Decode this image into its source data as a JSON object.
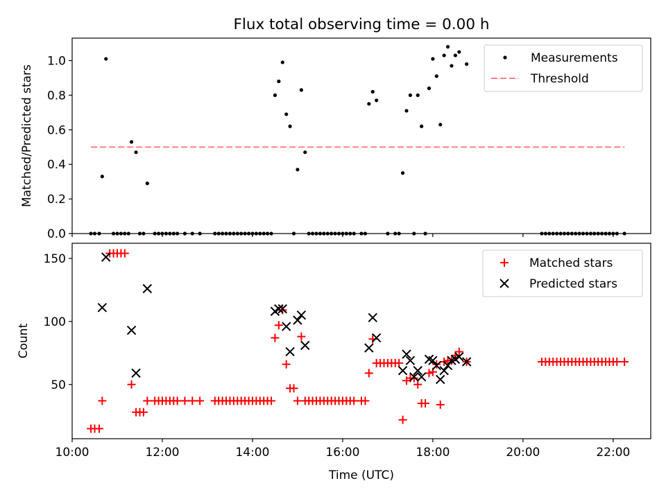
{
  "colors": {
    "measurements": "#000000",
    "threshold": "#ff8080",
    "matched": "#ff0000",
    "predicted": "#000000",
    "axes": "#000000",
    "legend_border": "#cccccc"
  },
  "chart_data": [
    {
      "type": "scatter",
      "title": "Flux total observing time = 0.00 h",
      "xlabel": "",
      "ylabel": "Matched/Predicted stars",
      "xlim": [
        "10:00",
        "22:50"
      ],
      "ylim": [
        0,
        1.13
      ],
      "yticks": [
        0.0,
        0.2,
        0.4,
        0.6,
        0.8,
        1.0
      ],
      "yticklabels": [
        "0.0",
        "0.2",
        "0.4",
        "0.6",
        "0.8",
        "1.0"
      ],
      "grid": false,
      "legend": "top-right",
      "series": [
        {
          "name": "Measurements",
          "marker": "dot",
          "points": [
            [
              "10:25",
              0
            ],
            [
              "10:30",
              0
            ],
            [
              "10:36",
              0
            ],
            [
              "10:40",
              0.33
            ],
            [
              "10:45",
              1.01
            ],
            [
              "10:55",
              0
            ],
            [
              "11:00",
              0
            ],
            [
              "11:05",
              0
            ],
            [
              "11:10",
              0
            ],
            [
              "11:15",
              0
            ],
            [
              "11:19",
              0.53
            ],
            [
              "11:25",
              0.47
            ],
            [
              "11:30",
              0
            ],
            [
              "11:35",
              0
            ],
            [
              "11:40",
              0.29
            ],
            [
              "11:50",
              0
            ],
            [
              "11:55",
              0
            ],
            [
              "12:00",
              0
            ],
            [
              "12:05",
              0
            ],
            [
              "12:10",
              0
            ],
            [
              "12:15",
              0
            ],
            [
              "12:20",
              0
            ],
            [
              "12:30",
              0
            ],
            [
              "12:40",
              0
            ],
            [
              "12:50",
              0
            ],
            [
              "13:10",
              0
            ],
            [
              "13:15",
              0
            ],
            [
              "13:20",
              0
            ],
            [
              "13:25",
              0
            ],
            [
              "13:30",
              0
            ],
            [
              "13:35",
              0
            ],
            [
              "13:40",
              0
            ],
            [
              "13:45",
              0
            ],
            [
              "13:50",
              0
            ],
            [
              "13:55",
              0
            ],
            [
              "14:00",
              0
            ],
            [
              "14:05",
              0
            ],
            [
              "14:10",
              0
            ],
            [
              "14:15",
              0
            ],
            [
              "14:20",
              0
            ],
            [
              "14:25",
              0
            ],
            [
              "14:30",
              0.8
            ],
            [
              "14:35",
              0.88
            ],
            [
              "14:40",
              0.99
            ],
            [
              "14:45",
              0.69
            ],
            [
              "14:50",
              0.62
            ],
            [
              "14:55",
              0
            ],
            [
              "15:00",
              0.37
            ],
            [
              "15:05",
              0.83
            ],
            [
              "15:10",
              0.47
            ],
            [
              "15:15",
              0
            ],
            [
              "15:20",
              0
            ],
            [
              "15:25",
              0
            ],
            [
              "15:30",
              0
            ],
            [
              "15:35",
              0
            ],
            [
              "15:40",
              0
            ],
            [
              "15:45",
              0
            ],
            [
              "15:50",
              0
            ],
            [
              "15:55",
              0
            ],
            [
              "16:00",
              0
            ],
            [
              "16:05",
              0
            ],
            [
              "16:10",
              0
            ],
            [
              "16:15",
              0
            ],
            [
              "16:25",
              0
            ],
            [
              "16:30",
              0
            ],
            [
              "16:35",
              0.75
            ],
            [
              "16:40",
              0.82
            ],
            [
              "16:45",
              0.77
            ],
            [
              "17:00",
              0
            ],
            [
              "17:10",
              0
            ],
            [
              "17:15",
              0
            ],
            [
              "17:20",
              0.35
            ],
            [
              "17:25",
              0.71
            ],
            [
              "17:30",
              0.8
            ],
            [
              "17:35",
              0
            ],
            [
              "17:40",
              0.8
            ],
            [
              "17:45",
              0.62
            ],
            [
              "17:50",
              0
            ],
            [
              "17:55",
              0.84
            ],
            [
              "18:00",
              1.01
            ],
            [
              "18:05",
              0.91
            ],
            [
              "18:10",
              0.63
            ],
            [
              "18:15",
              1.03
            ],
            [
              "18:20",
              1.08
            ],
            [
              "18:25",
              0.97
            ],
            [
              "18:30",
              1.03
            ],
            [
              "18:35",
              1.05
            ],
            [
              "18:45",
              0.98
            ],
            [
              "20:25",
              0
            ],
            [
              "20:30",
              0
            ],
            [
              "20:35",
              0
            ],
            [
              "20:40",
              0
            ],
            [
              "20:45",
              0
            ],
            [
              "20:50",
              0
            ],
            [
              "20:55",
              0
            ],
            [
              "21:00",
              0
            ],
            [
              "21:05",
              0
            ],
            [
              "21:10",
              0
            ],
            [
              "21:15",
              0
            ],
            [
              "21:20",
              0
            ],
            [
              "21:25",
              0
            ],
            [
              "21:30",
              0
            ],
            [
              "21:35",
              0
            ],
            [
              "21:40",
              0
            ],
            [
              "21:45",
              0
            ],
            [
              "21:50",
              0
            ],
            [
              "21:55",
              0
            ],
            [
              "22:00",
              0
            ],
            [
              "22:05",
              0
            ],
            [
              "22:15",
              0
            ]
          ]
        },
        {
          "name": "Threshold",
          "style": "dashed",
          "points": [
            [
              "10:25",
              0.5
            ],
            [
              "22:15",
              0.5
            ]
          ]
        }
      ]
    },
    {
      "type": "scatter",
      "title": "",
      "xlabel": "Time (UTC)",
      "ylabel": "Count",
      "xlim": [
        "10:00",
        "22:50"
      ],
      "ylim": [
        7,
        162
      ],
      "yticks": [
        50,
        100,
        150
      ],
      "yticklabels": [
        "50",
        "100",
        "150"
      ],
      "xticks": [
        "10:00",
        "12:00",
        "14:00",
        "16:00",
        "18:00",
        "20:00",
        "22:00"
      ],
      "xticklabels": [
        "10:00",
        "12:00",
        "14:00",
        "16:00",
        "18:00",
        "20:00",
        "22:00"
      ],
      "grid": false,
      "legend": "top-right",
      "series": [
        {
          "name": "Matched stars",
          "marker": "plus",
          "points": [
            [
              "10:25",
              15
            ],
            [
              "10:30",
              15
            ],
            [
              "10:36",
              15
            ],
            [
              "10:40",
              37
            ],
            [
              "10:50",
              154
            ],
            [
              "10:55",
              154
            ],
            [
              "11:00",
              154
            ],
            [
              "11:05",
              154
            ],
            [
              "11:10",
              154
            ],
            [
              "11:19",
              50
            ],
            [
              "11:25",
              28
            ],
            [
              "11:30",
              28
            ],
            [
              "11:35",
              28
            ],
            [
              "11:40",
              37
            ],
            [
              "11:50",
              37
            ],
            [
              "11:55",
              37
            ],
            [
              "12:00",
              37
            ],
            [
              "12:05",
              37
            ],
            [
              "12:10",
              37
            ],
            [
              "12:15",
              37
            ],
            [
              "12:20",
              37
            ],
            [
              "12:30",
              37
            ],
            [
              "12:40",
              37
            ],
            [
              "12:50",
              37
            ],
            [
              "13:10",
              37
            ],
            [
              "13:15",
              37
            ],
            [
              "13:20",
              37
            ],
            [
              "13:25",
              37
            ],
            [
              "13:30",
              37
            ],
            [
              "13:35",
              37
            ],
            [
              "13:40",
              37
            ],
            [
              "13:45",
              37
            ],
            [
              "13:50",
              37
            ],
            [
              "13:55",
              37
            ],
            [
              "14:00",
              37
            ],
            [
              "14:05",
              37
            ],
            [
              "14:10",
              37
            ],
            [
              "14:15",
              37
            ],
            [
              "14:20",
              37
            ],
            [
              "14:25",
              37
            ],
            [
              "14:30",
              87
            ],
            [
              "14:35",
              97
            ],
            [
              "14:40",
              109
            ],
            [
              "14:45",
              66
            ],
            [
              "14:50",
              47
            ],
            [
              "14:55",
              47
            ],
            [
              "15:00",
              37
            ],
            [
              "15:05",
              88
            ],
            [
              "15:10",
              37
            ],
            [
              "15:15",
              37
            ],
            [
              "15:20",
              37
            ],
            [
              "15:25",
              37
            ],
            [
              "15:30",
              37
            ],
            [
              "15:35",
              37
            ],
            [
              "15:40",
              37
            ],
            [
              "15:45",
              37
            ],
            [
              "15:50",
              37
            ],
            [
              "15:55",
              37
            ],
            [
              "16:00",
              37
            ],
            [
              "16:05",
              37
            ],
            [
              "16:10",
              37
            ],
            [
              "16:15",
              37
            ],
            [
              "16:25",
              37
            ],
            [
              "16:30",
              37
            ],
            [
              "16:35",
              59
            ],
            [
              "16:40",
              86
            ],
            [
              "16:45",
              67
            ],
            [
              "16:50",
              67
            ],
            [
              "16:55",
              67
            ],
            [
              "17:00",
              67
            ],
            [
              "17:05",
              67
            ],
            [
              "17:10",
              67
            ],
            [
              "17:15",
              67
            ],
            [
              "17:20",
              22
            ],
            [
              "17:25",
              53
            ],
            [
              "17:30",
              55
            ],
            [
              "17:35",
              55
            ],
            [
              "17:40",
              50
            ],
            [
              "17:45",
              35
            ],
            [
              "17:50",
              35
            ],
            [
              "17:55",
              59
            ],
            [
              "18:00",
              60
            ],
            [
              "18:05",
              66
            ],
            [
              "18:10",
              34
            ],
            [
              "18:15",
              68
            ],
            [
              "18:20",
              69
            ],
            [
              "18:25",
              69
            ],
            [
              "18:30",
              73
            ],
            [
              "18:35",
              76
            ],
            [
              "18:45",
              68
            ],
            [
              "20:25",
              68
            ],
            [
              "20:30",
              68
            ],
            [
              "20:35",
              68
            ],
            [
              "20:40",
              68
            ],
            [
              "20:45",
              68
            ],
            [
              "20:50",
              68
            ],
            [
              "20:55",
              68
            ],
            [
              "21:00",
              68
            ],
            [
              "21:05",
              68
            ],
            [
              "21:10",
              68
            ],
            [
              "21:15",
              68
            ],
            [
              "21:20",
              68
            ],
            [
              "21:25",
              68
            ],
            [
              "21:30",
              68
            ],
            [
              "21:35",
              68
            ],
            [
              "21:40",
              68
            ],
            [
              "21:45",
              68
            ],
            [
              "21:50",
              68
            ],
            [
              "21:55",
              68
            ],
            [
              "22:00",
              68
            ],
            [
              "22:05",
              68
            ],
            [
              "22:15",
              68
            ]
          ]
        },
        {
          "name": "Predicted stars",
          "marker": "x",
          "points": [
            [
              "10:40",
              111
            ],
            [
              "10:45",
              151
            ],
            [
              "11:19",
              93
            ],
            [
              "11:25",
              59
            ],
            [
              "11:40",
              126
            ],
            [
              "14:30",
              108
            ],
            [
              "14:35",
              110
            ],
            [
              "14:40",
              110
            ],
            [
              "14:45",
              96
            ],
            [
              "14:50",
              76
            ],
            [
              "15:00",
              101
            ],
            [
              "15:05",
              105
            ],
            [
              "15:10",
              81
            ],
            [
              "16:35",
              79
            ],
            [
              "16:40",
              103
            ],
            [
              "16:45",
              87
            ],
            [
              "17:20",
              61
            ],
            [
              "17:25",
              74
            ],
            [
              "17:30",
              69
            ],
            [
              "17:35",
              56
            ],
            [
              "17:40",
              61
            ],
            [
              "17:45",
              56
            ],
            [
              "17:55",
              70
            ],
            [
              "18:00",
              69
            ],
            [
              "18:05",
              65
            ],
            [
              "18:10",
              54
            ],
            [
              "18:15",
              61
            ],
            [
              "18:20",
              65
            ],
            [
              "18:25",
              69
            ],
            [
              "18:30",
              70
            ],
            [
              "18:35",
              72
            ],
            [
              "18:45",
              68
            ]
          ]
        }
      ]
    }
  ]
}
